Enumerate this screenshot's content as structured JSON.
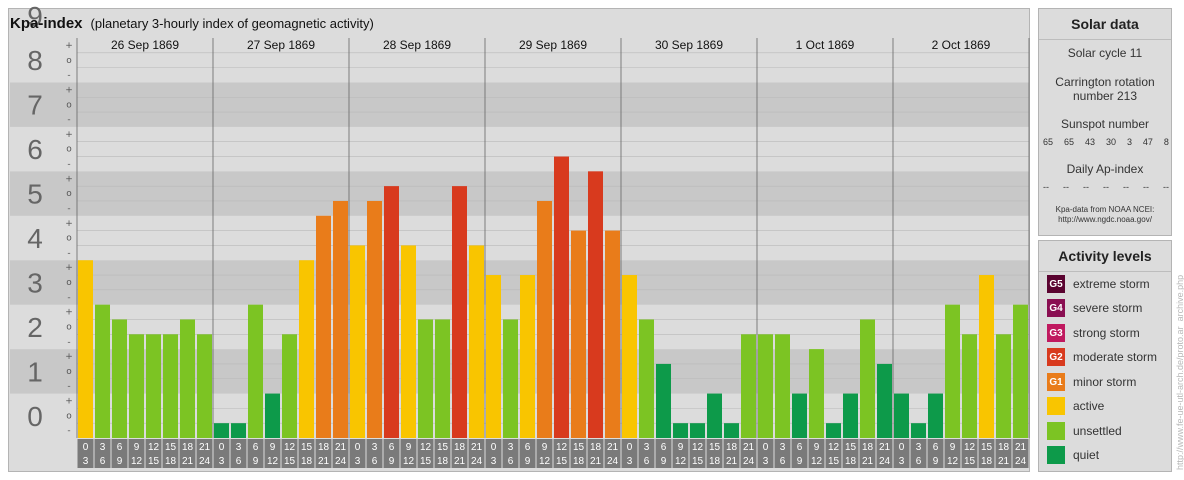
{
  "title": "Kpa-index",
  "subtitle": "(planetary 3-hourly index of geomagnetic activity)",
  "chart_data": {
    "type": "bar",
    "title": "Kpa-index",
    "subtitle": "(planetary 3-hourly index of geomagnetic activity)",
    "ylim": [
      0,
      9
    ],
    "y_tick_labels": [
      "0",
      "1",
      "2",
      "3",
      "4",
      "5",
      "6",
      "7",
      "8",
      "9"
    ],
    "sub_tick_labels": [
      "+",
      "o",
      "-"
    ],
    "days": [
      "26 Sep 1869",
      "27 Sep 1869",
      "28 Sep 1869",
      "29 Sep 1869",
      "30 Sep 1869",
      "1 Oct 1869",
      "2 Oct 1869"
    ],
    "interval_labels": [
      [
        "0",
        "3"
      ],
      [
        "3",
        "6"
      ],
      [
        "6",
        "9"
      ],
      [
        "9",
        "12"
      ],
      [
        "12",
        "15"
      ],
      [
        "15",
        "18"
      ],
      [
        "18",
        "21"
      ],
      [
        "21",
        "24"
      ]
    ],
    "values": [
      [
        4.0,
        3.0,
        2.667,
        2.333,
        2.333,
        2.333,
        2.667,
        2.333
      ],
      [
        0.333,
        0.333,
        3.0,
        1.0,
        2.333,
        4.0,
        5.0,
        5.333
      ],
      [
        4.333,
        5.333,
        5.667,
        4.333,
        2.667,
        2.667,
        5.667,
        4.333
      ],
      [
        3.667,
        2.667,
        3.667,
        5.333,
        6.333,
        4.667,
        6.0,
        4.667
      ],
      [
        3.667,
        2.667,
        1.667,
        0.333,
        0.333,
        1.0,
        0.333,
        2.333
      ],
      [
        2.333,
        2.333,
        1.0,
        2.0,
        0.333,
        1.0,
        2.667,
        1.667
      ],
      [
        1.0,
        0.333,
        1.0,
        3.0,
        2.333,
        3.667,
        2.333,
        3.0
      ]
    ],
    "grid": true,
    "legend": "right"
  },
  "colors": {
    "quiet": "#0d9a4a",
    "unsettled": "#7cc423",
    "active": "#f9c500",
    "g1": "#e97c1a",
    "g2": "#d83a1e",
    "g3": "#c0195f",
    "g4": "#8a0f52",
    "g5": "#5a0330",
    "band_dark": "#c8c8c8",
    "band_light": "#dcdcdc",
    "axis_gray": "#7a7a7a"
  },
  "solar": {
    "title": "Solar data",
    "cycle": "Solar cycle 11",
    "carrington_line1": "Carrington rotation",
    "carrington_line2": "number 213",
    "sunspot_title": "Sunspot number",
    "sunspot_values": [
      "65",
      "65",
      "43",
      "30",
      "3",
      "47",
      "8"
    ],
    "ap_title": "Daily Ap-index",
    "ap_values": [
      "--",
      "--",
      "--",
      "--",
      "--",
      "--",
      "--"
    ],
    "source_line1": "Kpa-data from NOAA NCEI:",
    "source_line2": "http://www.ngdc.noaa.gov/"
  },
  "activity": {
    "title": "Activity levels",
    "levels": [
      {
        "code": "G5",
        "label": "extreme storm",
        "color": "#5a0330"
      },
      {
        "code": "G4",
        "label": "severe storm",
        "color": "#8a0f52"
      },
      {
        "code": "G3",
        "label": "strong storm",
        "color": "#c0195f"
      },
      {
        "code": "G2",
        "label": "moderate storm",
        "color": "#d83a1e"
      },
      {
        "code": "G1",
        "label": "minor storm",
        "color": "#e97c1a"
      },
      {
        "code": "",
        "label": "active",
        "color": "#f9c500"
      },
      {
        "code": "",
        "label": "unsettled",
        "color": "#7cc423"
      },
      {
        "code": "",
        "label": "quiet",
        "color": "#0d9a4a"
      }
    ]
  },
  "credit": "http://www.fe-ue-utl-arch.de/proto.ar_archive.php"
}
